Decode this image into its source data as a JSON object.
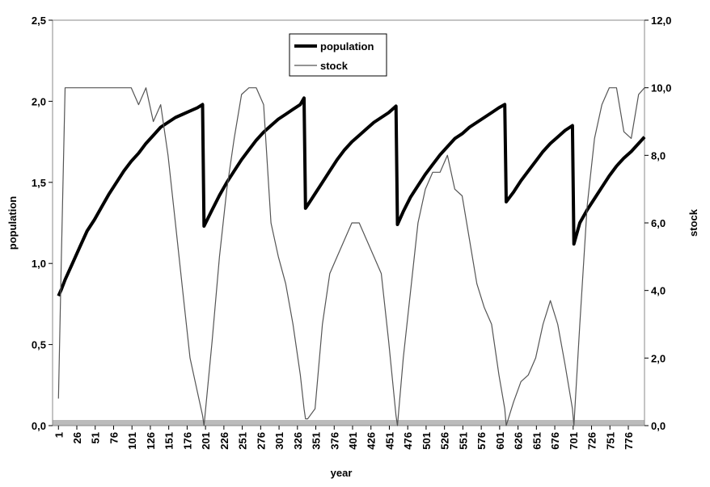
{
  "chart_data": {
    "type": "line",
    "x_label": "year",
    "y_label": "population",
    "y2_label": "stock",
    "xlim": [
      -7,
      798
    ],
    "xticks": [
      1,
      26,
      51,
      76,
      101,
      126,
      151,
      176,
      201,
      226,
      251,
      276,
      301,
      326,
      351,
      376,
      401,
      426,
      451,
      476,
      501,
      526,
      551,
      576,
      601,
      626,
      651,
      676,
      701,
      726,
      751,
      776
    ],
    "ylim": [
      0,
      2.5
    ],
    "yticks": [
      {
        "value": 0,
        "label": "0,0"
      },
      {
        "value": 0.5,
        "label": "0,5"
      },
      {
        "value": 1,
        "label": "1,0"
      },
      {
        "value": 1.5,
        "label": "1,5"
      },
      {
        "value": 2,
        "label": "2,0"
      },
      {
        "value": 2.5,
        "label": "2,5"
      }
    ],
    "y2lim": [
      0,
      12
    ],
    "y2ticks": [
      {
        "value": 0,
        "label": "0,0"
      },
      {
        "value": 2,
        "label": "2,0"
      },
      {
        "value": 4,
        "label": "4,0"
      },
      {
        "value": 6,
        "label": "6,0"
      },
      {
        "value": 8,
        "label": "8,0"
      },
      {
        "value": 10,
        "label": "10,0"
      },
      {
        "value": 12,
        "label": "12,0"
      }
    ],
    "x": [
      1,
      5,
      10,
      20,
      30,
      40,
      50,
      60,
      70,
      80,
      90,
      100,
      110,
      120,
      130,
      140,
      150,
      160,
      170,
      180,
      190,
      197,
      199,
      210,
      220,
      230,
      240,
      250,
      260,
      270,
      280,
      290,
      300,
      310,
      320,
      330,
      335,
      337,
      340,
      350,
      360,
      370,
      380,
      390,
      400,
      410,
      420,
      430,
      440,
      450,
      460,
      462,
      470,
      480,
      490,
      500,
      510,
      520,
      530,
      540,
      550,
      560,
      570,
      580,
      590,
      600,
      608,
      610,
      620,
      630,
      640,
      650,
      660,
      670,
      680,
      690,
      700,
      702,
      710,
      720,
      730,
      740,
      750,
      760,
      770,
      780,
      790,
      798
    ],
    "series": [
      {
        "name": "population",
        "color": "#000000",
        "width": 4,
        "values": [
          0.8,
          0.84,
          0.9,
          1.0,
          1.1,
          1.2,
          1.27,
          1.35,
          1.43,
          1.5,
          1.57,
          1.63,
          1.68,
          1.74,
          1.79,
          1.84,
          1.87,
          1.9,
          1.92,
          1.94,
          1.96,
          1.98,
          1.23,
          1.33,
          1.42,
          1.5,
          1.57,
          1.64,
          1.7,
          1.76,
          1.81,
          1.85,
          1.89,
          1.92,
          1.95,
          1.98,
          2.02,
          1.34,
          1.36,
          1.43,
          1.5,
          1.57,
          1.64,
          1.7,
          1.75,
          1.79,
          1.83,
          1.87,
          1.9,
          1.93,
          1.97,
          1.24,
          1.32,
          1.41,
          1.48,
          1.55,
          1.61,
          1.67,
          1.72,
          1.77,
          1.8,
          1.84,
          1.87,
          1.9,
          1.93,
          1.96,
          1.98,
          1.38,
          1.44,
          1.51,
          1.57,
          1.63,
          1.69,
          1.74,
          1.78,
          1.82,
          1.85,
          1.12,
          1.25,
          1.33,
          1.4,
          1.47,
          1.54,
          1.6,
          1.65,
          1.69,
          1.74,
          1.78
        ]
      },
      {
        "name": "stock",
        "color": "#555555",
        "width": 1.2,
        "axis": "y2",
        "values": [
          0.8,
          5,
          10,
          10,
          10,
          10,
          10,
          10,
          10,
          10,
          10,
          10,
          9.5,
          10,
          9,
          9.5,
          8,
          6,
          4,
          2,
          1,
          0.3,
          0,
          2.5,
          5,
          7,
          8.5,
          9.8,
          10,
          10,
          9.5,
          6,
          5,
          4.2,
          3,
          1.5,
          0.5,
          0.2,
          0.2,
          0.5,
          3,
          4.5,
          5,
          5.5,
          6,
          6,
          5.5,
          5,
          4.5,
          2.5,
          0.3,
          0,
          2,
          4,
          6,
          7,
          7.5,
          7.5,
          8,
          7,
          6.8,
          5.5,
          4.2,
          3.5,
          3,
          1.5,
          0.5,
          0,
          0.7,
          1.3,
          1.5,
          2,
          3,
          3.7,
          3,
          1.8,
          0.5,
          0,
          3,
          6.5,
          8.5,
          9.5,
          10,
          10,
          8.7,
          8.5,
          9.8,
          10
        ]
      }
    ]
  }
}
